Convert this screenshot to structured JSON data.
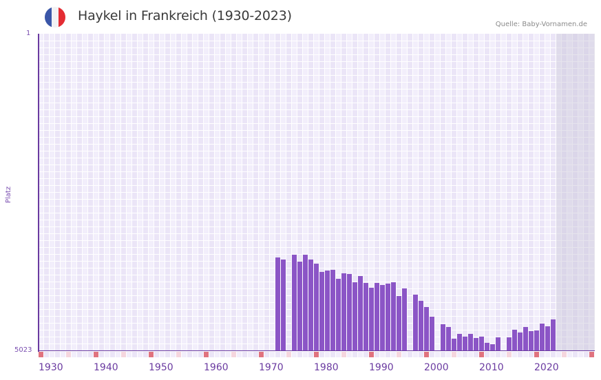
{
  "header": {
    "title": "Haykel in Frankreich (1930-2023)",
    "source": "Quelle: Baby-Vornamen.de",
    "flag": {
      "colors": [
        "#3a56a8",
        "#f2f2f4",
        "#e42c33"
      ],
      "icon": "france-flag-icon"
    }
  },
  "axis": {
    "y_label": "Platz",
    "y_top_tick": "1",
    "y_bottom_tick": "5023",
    "x_ticks": [
      "1930",
      "1940",
      "1950",
      "1960",
      "1970",
      "1980",
      "1990",
      "2000",
      "2010",
      "2020"
    ]
  },
  "colors": {
    "bar": "#8b55c6",
    "axis": "#6a3aa0",
    "decade_marker": "#e0737f",
    "half_decade_marker": "#f5d6de",
    "grid_a": "#f2eefb",
    "grid_b": "#ebe5f7"
  },
  "chart_data": {
    "type": "bar",
    "title": "Haykel in Frankreich (1930-2023)",
    "xlabel": "",
    "ylabel": "Platz",
    "y_inverted": true,
    "ylim": [
      1,
      5023
    ],
    "xlim": [
      1930,
      2030
    ],
    "grid": true,
    "future_shaded_from": 2024,
    "categories": [
      1973,
      1974,
      1976,
      1977,
      1978,
      1979,
      1980,
      1981,
      1982,
      1983,
      1984,
      1985,
      1986,
      1987,
      1988,
      1989,
      1990,
      1991,
      1992,
      1993,
      1994,
      1995,
      1996,
      1998,
      1999,
      2000,
      2001,
      2003,
      2004,
      2005,
      2006,
      2007,
      2008,
      2009,
      2010,
      2011,
      2012,
      2013,
      2015,
      2016,
      2017,
      2018,
      2019,
      2020,
      2021,
      2022,
      2023
    ],
    "values": [
      3548,
      3581,
      3505,
      3614,
      3505,
      3581,
      3646,
      3777,
      3756,
      3745,
      3887,
      3799,
      3810,
      3941,
      3843,
      3952,
      4029,
      3952,
      3985,
      3963,
      3941,
      4159,
      4039,
      4138,
      4236,
      4334,
      4487,
      4607,
      4651,
      4837,
      4760,
      4804,
      4760,
      4826,
      4804,
      4902,
      4924,
      4815,
      4815,
      4695,
      4739,
      4651,
      4717,
      4706,
      4597,
      4640,
      4531
    ]
  }
}
